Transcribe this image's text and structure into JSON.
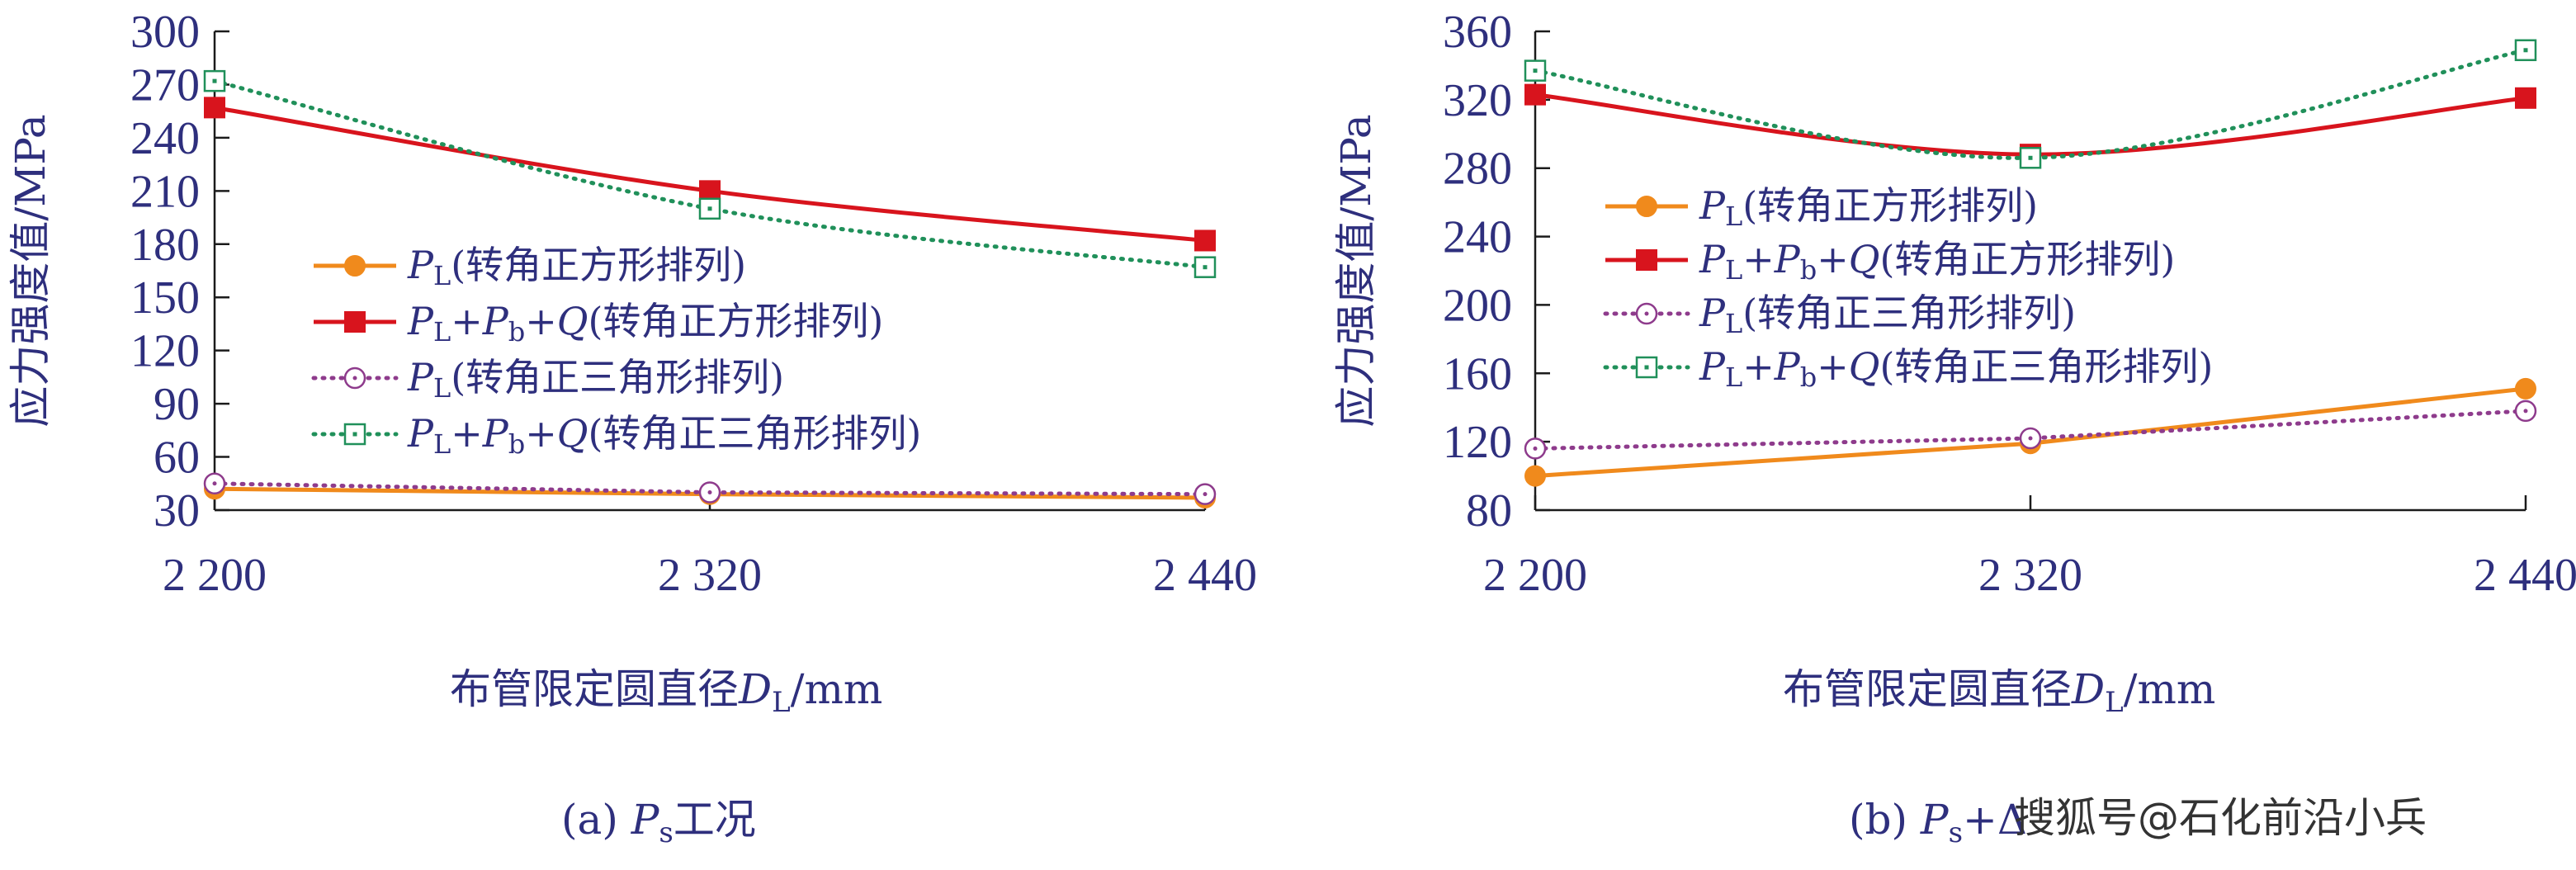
{
  "x_axis_label_prefix": "布管限定圆直径",
  "x_axis_var": "D",
  "x_axis_sub": "L",
  "x_axis_unit": "/mm",
  "y_axis_label": "应力强度值/MPa",
  "watermark": "搜狐号@石化前沿小兵",
  "legend_text": {
    "square_single": "(转角正方形排列)",
    "square_combo": "(转角正方形排列)",
    "tri_single": "(转角正三角形排列)",
    "tri_combo": "(转角正三角形排列)"
  },
  "chart_data": [
    {
      "type": "line",
      "caption_prefix": "(a)",
      "caption_var": "P",
      "caption_sub": "s",
      "caption_suffix": "工况",
      "x": [
        2200,
        2320,
        2440
      ],
      "x_tick_labels": [
        "2 200",
        "2 320",
        "2 440"
      ],
      "ylim": [
        30,
        300
      ],
      "yticks": [
        30,
        60,
        90,
        120,
        150,
        180,
        210,
        240,
        270,
        300
      ],
      "legend_position": "center",
      "series": [
        {
          "key": "square_single",
          "values": [
            42,
            39,
            37
          ],
          "color": "#f08a1c",
          "style": "solid",
          "marker": "filled-circle"
        },
        {
          "key": "square_combo",
          "values": [
            257,
            210,
            182
          ],
          "color": "#d8141d",
          "style": "solid",
          "marker": "filled-square"
        },
        {
          "key": "tri_single",
          "values": [
            45,
            40,
            39
          ],
          "color": "#8e3b8c",
          "style": "dotted",
          "marker": "open-circle"
        },
        {
          "key": "tri_combo",
          "values": [
            272,
            200,
            167
          ],
          "color": "#20905a",
          "style": "dotted",
          "marker": "open-square"
        }
      ]
    },
    {
      "type": "line",
      "caption_prefix": "(b)",
      "caption_var": "P",
      "caption_sub": "s",
      "caption_suffix": "+Δ",
      "x": [
        2200,
        2320,
        2440
      ],
      "x_tick_labels": [
        "2 200",
        "2 320",
        "2 440"
      ],
      "ylim": [
        80,
        360
      ],
      "yticks": [
        80,
        120,
        160,
        200,
        240,
        280,
        320,
        360
      ],
      "legend_position": "center-left",
      "series": [
        {
          "key": "square_single",
          "values": [
            100,
            119,
            151
          ],
          "color": "#f08a1c",
          "style": "solid",
          "marker": "filled-circle"
        },
        {
          "key": "square_combo",
          "values": [
            323,
            288,
            321
          ],
          "color": "#d8141d",
          "style": "solid",
          "marker": "filled-square"
        },
        {
          "key": "tri_single",
          "values": [
            116,
            122,
            138
          ],
          "color": "#8e3b8c",
          "style": "dotted",
          "marker": "open-circle"
        },
        {
          "key": "tri_combo",
          "values": [
            337,
            286,
            349
          ],
          "color": "#20905a",
          "style": "dotted",
          "marker": "open-square"
        }
      ]
    }
  ]
}
